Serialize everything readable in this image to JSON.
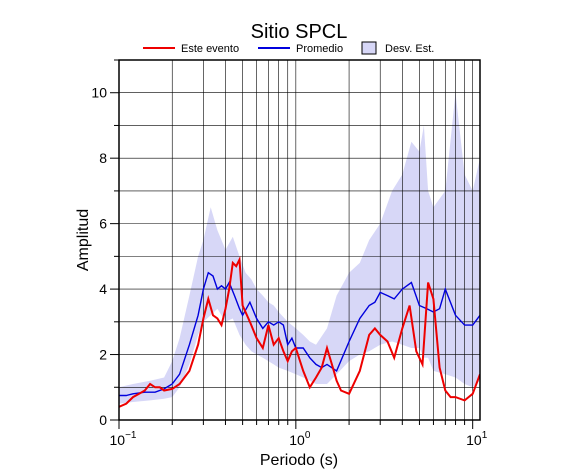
{
  "chart_data": {
    "type": "line",
    "title": "Sitio SPCL",
    "xlabel": "Periodo (s)",
    "ylabel": "Amplitud",
    "x_scale": "log",
    "xlim": [
      0.1,
      11
    ],
    "ylim": [
      0,
      11
    ],
    "grid": true,
    "legend_position": "top",
    "x_ticks": [
      {
        "value": 0.1,
        "base": "10",
        "exp": "−1"
      },
      {
        "value": 1,
        "base": "10",
        "exp": "0"
      },
      {
        "value": 10,
        "base": "10",
        "exp": "1"
      }
    ],
    "y_ticks": [
      {
        "value": 0,
        "label": "0"
      },
      {
        "value": 2,
        "label": "2"
      },
      {
        "value": 4,
        "label": "4"
      },
      {
        "value": 6,
        "label": "6"
      },
      {
        "value": 8,
        "label": "8"
      },
      {
        "value": 10,
        "label": "10"
      }
    ],
    "legend": [
      {
        "label": "Este evento",
        "kind": "line",
        "color": "#ee0000"
      },
      {
        "label": "Promedio",
        "kind": "line",
        "color": "#0000dd"
      },
      {
        "label": "Desv. Est.",
        "kind": "box",
        "color": "#d7d7f7"
      }
    ],
    "band": {
      "name": "Desv. Est.",
      "color": "#d7d7f7",
      "x": [
        0.1,
        0.12,
        0.15,
        0.18,
        0.2,
        0.22,
        0.25,
        0.28,
        0.3,
        0.33,
        0.36,
        0.4,
        0.44,
        0.48,
        0.52,
        0.56,
        0.6,
        0.65,
        0.7,
        0.75,
        0.8,
        0.9,
        1.0,
        1.1,
        1.2,
        1.3,
        1.5,
        1.7,
        2.0,
        2.3,
        2.6,
        3.0,
        3.5,
        4.0,
        4.5,
        5.0,
        5.3,
        5.6,
        6.0,
        7.0,
        8.0,
        9.0,
        10.0,
        11.0
      ],
      "upper": [
        1.0,
        1.1,
        1.2,
        1.3,
        1.8,
        2.5,
        3.8,
        5.0,
        5.5,
        6.5,
        5.8,
        5.2,
        5.6,
        5.0,
        4.5,
        4.3,
        4.0,
        3.8,
        3.6,
        3.5,
        3.3,
        3.0,
        2.8,
        2.6,
        2.4,
        2.3,
        2.8,
        3.8,
        4.5,
        4.8,
        5.5,
        6.0,
        7.0,
        7.5,
        8.5,
        8.2,
        9.0,
        7.0,
        6.5,
        7.0,
        10.0,
        7.5,
        7.0,
        8.0
      ],
      "lower": [
        0.5,
        0.55,
        0.6,
        0.65,
        0.7,
        1.0,
        1.7,
        2.6,
        3.0,
        3.2,
        3.4,
        3.0,
        3.1,
        2.6,
        2.3,
        2.1,
        2.0,
        1.9,
        1.8,
        1.7,
        1.6,
        1.5,
        1.4,
        1.3,
        1.2,
        1.1,
        1.1,
        1.4,
        1.8,
        2.0,
        2.1,
        2.3,
        2.4,
        2.3,
        2.2,
        2.2,
        1.9,
        1.9,
        1.5,
        1.4,
        1.3,
        1.1,
        1.0,
        1.2
      ]
    },
    "series": [
      {
        "name": "Promedio",
        "color": "#0000dd",
        "x": [
          0.1,
          0.11,
          0.12,
          0.14,
          0.16,
          0.18,
          0.2,
          0.22,
          0.25,
          0.28,
          0.3,
          0.32,
          0.34,
          0.36,
          0.38,
          0.4,
          0.42,
          0.45,
          0.48,
          0.5,
          0.55,
          0.6,
          0.65,
          0.7,
          0.75,
          0.8,
          0.85,
          0.9,
          0.95,
          1.0,
          1.1,
          1.2,
          1.3,
          1.4,
          1.5,
          1.7,
          2.0,
          2.3,
          2.6,
          2.8,
          3.0,
          3.3,
          3.6,
          4.0,
          4.5,
          5.0,
          5.5,
          6.0,
          6.5,
          7.0,
          8.0,
          9.0,
          10.0,
          11.0
        ],
        "values": [
          0.75,
          0.75,
          0.8,
          0.85,
          0.85,
          0.95,
          1.1,
          1.4,
          2.3,
          3.2,
          4.0,
          4.5,
          4.4,
          4.0,
          4.1,
          4.0,
          4.2,
          3.8,
          3.4,
          3.2,
          3.6,
          3.1,
          2.8,
          3.0,
          2.9,
          3.0,
          2.9,
          2.3,
          2.5,
          2.2,
          2.2,
          1.9,
          1.7,
          1.6,
          1.7,
          1.5,
          2.4,
          3.1,
          3.5,
          3.6,
          3.9,
          3.8,
          3.7,
          4.0,
          4.2,
          3.5,
          3.4,
          3.3,
          3.4,
          4.0,
          3.2,
          2.9,
          2.9,
          3.2
        ]
      },
      {
        "name": "Este evento",
        "color": "#ee0000",
        "x": [
          0.1,
          0.11,
          0.12,
          0.13,
          0.14,
          0.15,
          0.16,
          0.17,
          0.18,
          0.2,
          0.22,
          0.25,
          0.28,
          0.3,
          0.32,
          0.34,
          0.36,
          0.38,
          0.4,
          0.42,
          0.44,
          0.46,
          0.48,
          0.5,
          0.55,
          0.6,
          0.65,
          0.7,
          0.75,
          0.8,
          0.85,
          0.9,
          0.95,
          1.0,
          1.1,
          1.2,
          1.3,
          1.4,
          1.5,
          1.6,
          1.7,
          1.8,
          2.0,
          2.3,
          2.6,
          2.8,
          3.0,
          3.3,
          3.6,
          4.0,
          4.4,
          4.8,
          5.2,
          5.6,
          6.0,
          6.5,
          7.0,
          7.5,
          8.0,
          9.0,
          10.0,
          11.0
        ],
        "values": [
          0.4,
          0.5,
          0.7,
          0.8,
          0.9,
          1.1,
          1.0,
          1.0,
          0.9,
          0.95,
          1.1,
          1.5,
          2.3,
          3.1,
          3.7,
          3.2,
          3.1,
          2.9,
          3.4,
          4.0,
          4.8,
          4.7,
          4.9,
          3.5,
          3.0,
          2.5,
          2.2,
          2.9,
          2.3,
          2.5,
          2.1,
          1.8,
          2.1,
          2.2,
          1.5,
          1.0,
          1.3,
          1.6,
          2.2,
          1.7,
          1.2,
          0.9,
          0.8,
          1.5,
          2.6,
          2.8,
          2.6,
          2.4,
          1.9,
          2.8,
          3.5,
          2.1,
          1.7,
          4.2,
          3.7,
          1.6,
          0.9,
          0.7,
          0.7,
          0.6,
          0.8,
          1.4
        ]
      }
    ]
  }
}
